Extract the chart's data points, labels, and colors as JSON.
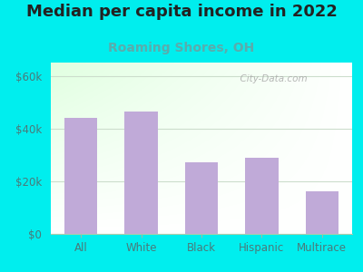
{
  "title": "Median per capita income in 2022",
  "subtitle": "Roaming Shores, OH",
  "categories": [
    "All",
    "White",
    "Black",
    "Hispanic",
    "Multirace"
  ],
  "values": [
    44000,
    46500,
    27000,
    29000,
    16000
  ],
  "bar_color": "#c0aad8",
  "title_fontsize": 13,
  "subtitle_fontsize": 10,
  "subtitle_color": "#5aacac",
  "tick_label_color": "#4a7a7a",
  "outer_bg_color": "#00EEEE",
  "ylim": [
    0,
    65000
  ],
  "yticks": [
    0,
    20000,
    40000,
    60000
  ],
  "ytick_labels": [
    "$0",
    "$20k",
    "$40k",
    "$60k"
  ],
  "watermark": "  City-Data.com",
  "grid_color": "#ccddcc",
  "bottom_spine_color": "#aaccaa"
}
